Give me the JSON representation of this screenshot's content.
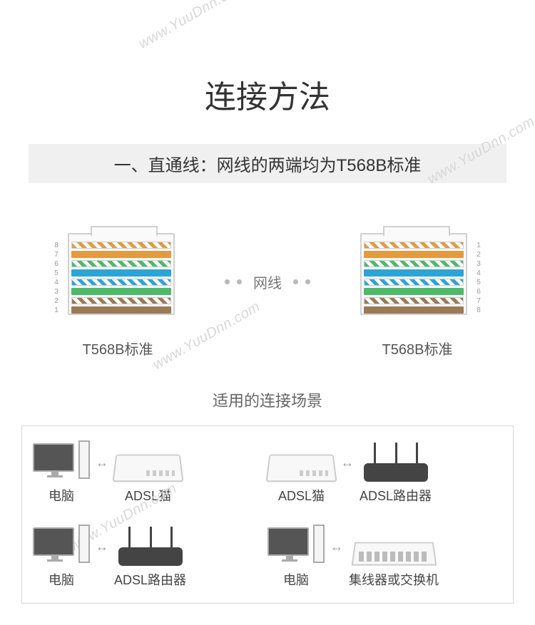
{
  "title": "连接方法",
  "subtitle": "一、直通线：网线的两端均为T568B标准",
  "watermark": "www.YuuDnn.com",
  "cable": {
    "center_label": "网线",
    "left_label": "T568B标准",
    "right_label": "T568B标准",
    "pins_left_order": [
      "8",
      "7",
      "6",
      "5",
      "4",
      "3",
      "2",
      "1"
    ],
    "pins_right_order": [
      "1",
      "2",
      "3",
      "4",
      "5",
      "6",
      "7",
      "8"
    ],
    "wire_colors": [
      {
        "type": "striped",
        "color": "#e39b3f"
      },
      {
        "type": "solid",
        "color": "#e39b3f"
      },
      {
        "type": "striped",
        "color": "#4fb96a"
      },
      {
        "type": "solid",
        "color": "#2aa5d8"
      },
      {
        "type": "striped",
        "color": "#2aa5d8"
      },
      {
        "type": "solid",
        "color": "#4fb96a"
      },
      {
        "type": "striped",
        "color": "#9b7a55"
      },
      {
        "type": "solid",
        "color": "#9b7a55"
      }
    ]
  },
  "scenario_title": "适用的连接场景",
  "bidir_symbol": "↔",
  "scenarios": [
    {
      "left": {
        "icon": "pc",
        "label": "电脑"
      },
      "right": {
        "icon": "modem",
        "label": "ADSL猫"
      }
    },
    {
      "left": {
        "icon": "modem",
        "label": "ADSL猫"
      },
      "right": {
        "icon": "router",
        "label": "ADSL路由器"
      }
    },
    {
      "left": {
        "icon": "pc",
        "label": "电脑"
      },
      "right": {
        "icon": "router",
        "label": "ADSL路由器"
      }
    },
    {
      "left": {
        "icon": "pc",
        "label": "电脑"
      },
      "right": {
        "icon": "switch",
        "label": "集线器或交换机"
      }
    }
  ],
  "colors": {
    "title": "#333333",
    "subtitle_bg": "#f0f0f0",
    "border": "#d8d8d8",
    "text_muted": "#666666"
  }
}
